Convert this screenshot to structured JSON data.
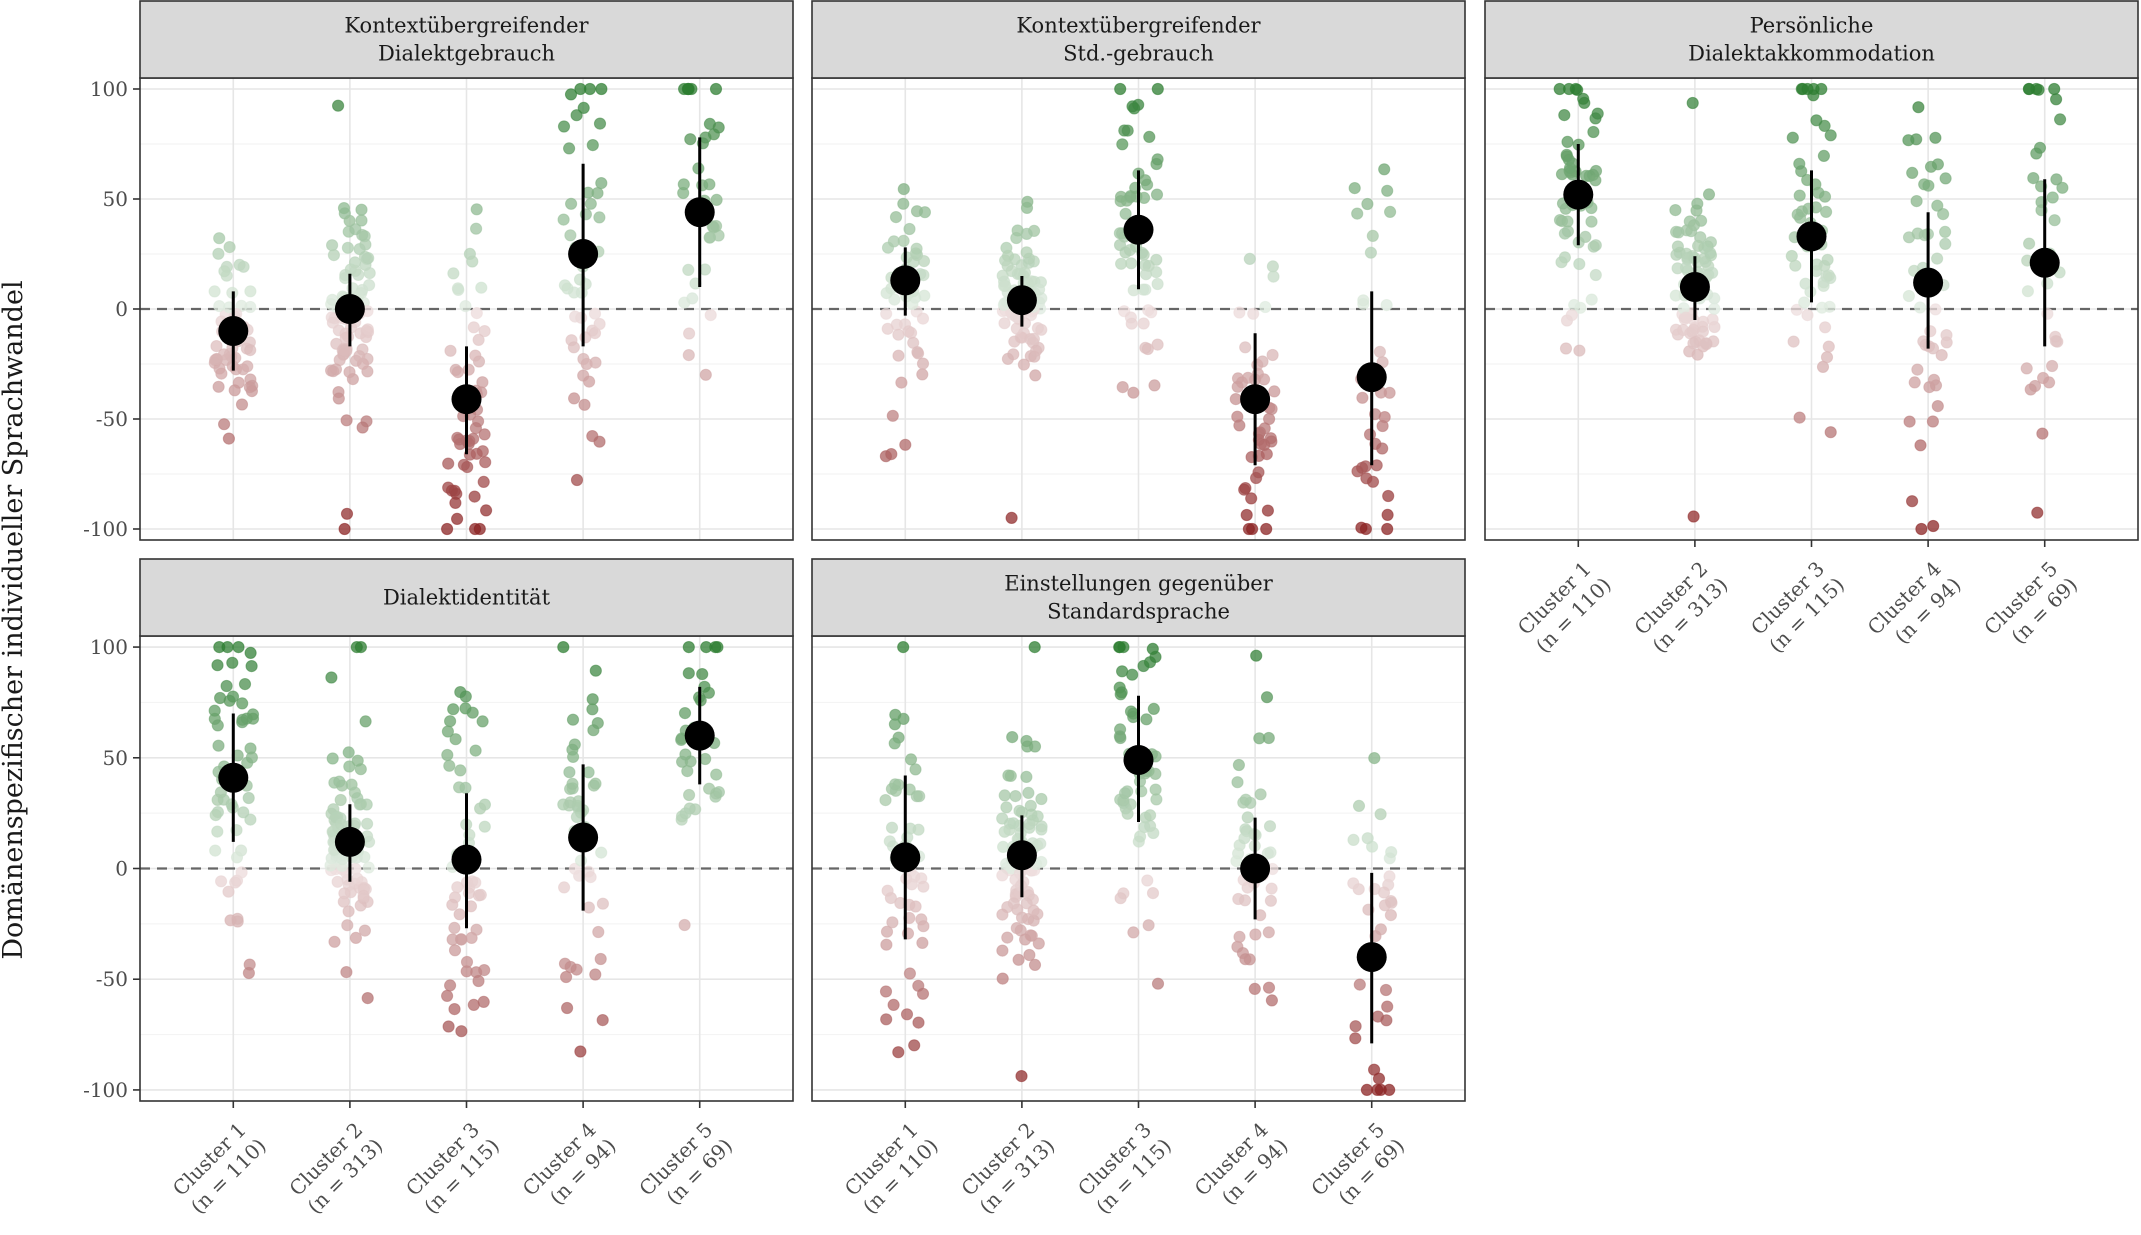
{
  "chart_data": {
    "type": "scatter",
    "subtype": "faceted jitter plot with mean and spread (pointrange)",
    "ylabel": "Domänenspezifischer individueller Sprachwandel",
    "ylim": [
      -105,
      105
    ],
    "yticks": [
      100,
      50,
      0,
      -50,
      -100
    ],
    "ytick_labels": [
      "100",
      "50",
      "0",
      "-50",
      "-100"
    ],
    "reference_line": 0,
    "grid": true,
    "legend": "none",
    "colors": {
      "positive": "#2e7d32",
      "negative": "#8b2323",
      "mean_point": "#000000",
      "strip_fill": "#d9d9d9",
      "reference": "#666666"
    },
    "categories": [
      {
        "name": "Cluster 1",
        "n_label": "(n = 110)"
      },
      {
        "name": "Cluster 2",
        "n_label": "(n = 313)"
      },
      {
        "name": "Cluster 3",
        "n_label": "(n = 115)"
      },
      {
        "name": "Cluster 4",
        "n_label": "(n = 94)"
      },
      {
        "name": "Cluster 5",
        "n_label": "(n = 69)"
      }
    ],
    "panels": [
      {
        "title_lines": [
          "Kontextübergreifender",
          "Dialektgebrauch"
        ],
        "series": [
          {
            "mean": -10,
            "low": -28,
            "high": 8
          },
          {
            "mean": 0,
            "low": -17,
            "high": 16
          },
          {
            "mean": -41,
            "low": -66,
            "high": -17
          },
          {
            "mean": 25,
            "low": -17,
            "high": 66
          },
          {
            "mean": 44,
            "low": 10,
            "high": 78
          }
        ]
      },
      {
        "title_lines": [
          "Kontextübergreifender",
          "Std.-gebrauch"
        ],
        "series": [
          {
            "mean": 13,
            "low": -3,
            "high": 28
          },
          {
            "mean": 4,
            "low": -8,
            "high": 15
          },
          {
            "mean": 36,
            "low": 9,
            "high": 63
          },
          {
            "mean": -41,
            "low": -71,
            "high": -11
          },
          {
            "mean": -31,
            "low": -71,
            "high": 8
          }
        ]
      },
      {
        "title_lines": [
          "Persönliche",
          "Dialektakkommodation"
        ],
        "series": [
          {
            "mean": 52,
            "low": 29,
            "high": 75
          },
          {
            "mean": 10,
            "low": -5,
            "high": 24
          },
          {
            "mean": 33,
            "low": 3,
            "high": 63
          },
          {
            "mean": 12,
            "low": -18,
            "high": 44
          },
          {
            "mean": 21,
            "low": -17,
            "high": 59
          }
        ]
      },
      {
        "title_lines": [
          "Dialektidentität"
        ],
        "series": [
          {
            "mean": 41,
            "low": 12,
            "high": 70
          },
          {
            "mean": 12,
            "low": -6,
            "high": 29
          },
          {
            "mean": 4,
            "low": -27,
            "high": 34
          },
          {
            "mean": 14,
            "low": -19,
            "high": 47
          },
          {
            "mean": 60,
            "low": 38,
            "high": 82
          }
        ]
      },
      {
        "title_lines": [
          "Einstellungen gegenüber",
          "Standardsprache"
        ],
        "series": [
          {
            "mean": 5,
            "low": -32,
            "high": 42
          },
          {
            "mean": 6,
            "low": -13,
            "high": 24
          },
          {
            "mean": 49,
            "low": 21,
            "high": 78
          },
          {
            "mean": 0,
            "low": -23,
            "high": 23
          },
          {
            "mean": -40,
            "low": -79,
            "high": -2
          }
        ]
      }
    ]
  }
}
